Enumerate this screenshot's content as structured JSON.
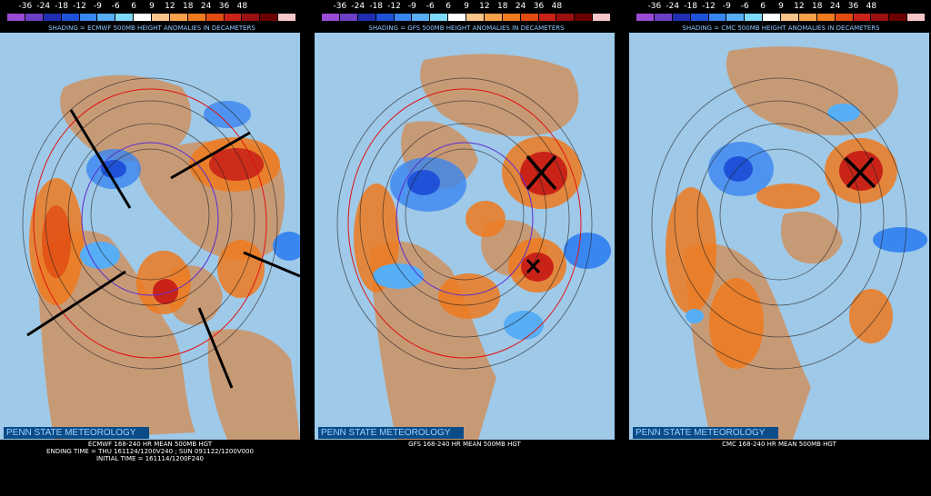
{
  "colorbar": {
    "ticks": [
      "-36",
      "-24",
      "-18",
      "-12",
      "-9",
      "-6",
      "6",
      "9",
      "12",
      "18",
      "24",
      "36",
      "48"
    ],
    "colors": [
      "#9a4bd6",
      "#6b3fc6",
      "#1f2fb0",
      "#1f52d8",
      "#3a86f0",
      "#57aef5",
      "#7fd9f6",
      "#ffffff",
      "#f9c48a",
      "#f7a14a",
      "#ef7a1f",
      "#e14b12",
      "#c92318",
      "#9a1010",
      "#6a0000",
      "#f7c7c7"
    ]
  },
  "panels": [
    {
      "shading_label": "SHADING = ECMWF 500MB HEIGHT ANOMALIES IN DECAMETERS",
      "credit": "PENN STATE METEOROLOGY",
      "caption_lines": [
        "ECMWF 168-240 HR MEAN 500MB HGT",
        "ENDING TIME = THU 161124/1200V240 ; SUN 091122/1200V000",
        "INITIAL TIME = 161114/1200F240"
      ]
    },
    {
      "shading_label": "SHADING = GFS 500MB HEIGHT ANOMALIES IN DECAMETERS",
      "credit": "PENN STATE METEOROLOGY",
      "caption_lines": [
        "GFS 168-240 HR MEAN 500MB HGT"
      ]
    },
    {
      "shading_label": "SHADING = CMC 500MB HEIGHT ANOMALIES IN DECAMETERS",
      "credit": "PENN STATE METEOROLOGY",
      "caption_lines": [
        "CMC 168-240 HR MEAN 500MB HGT"
      ]
    }
  ]
}
